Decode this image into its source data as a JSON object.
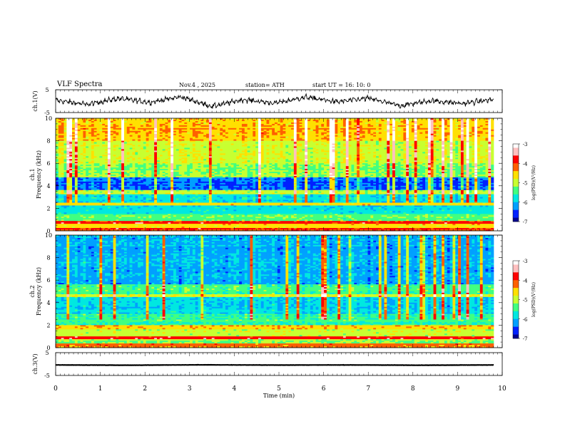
{
  "header": {
    "title": "VLF  Spectra",
    "date": "Nov.4  , 2025",
    "station": "station= ATH",
    "start": "start  UT  =    16: 10: 0"
  },
  "colors": {
    "trace": "#000000",
    "axis": "#000000",
    "cmap": [
      "#000000",
      "#000090",
      "#0020ff",
      "#00a0ff",
      "#00e8e0",
      "#40ff80",
      "#c8ff30",
      "#ffe000",
      "#ff6000",
      "#ff0000",
      "#ffc0c0",
      "#ffffff"
    ]
  },
  "chart_data": [
    {
      "id": "ch1-waveform",
      "type": "line",
      "ylabel": "ch.1(V)",
      "ylim": [
        -5,
        5
      ],
      "yticks": [
        "5",
        "-5"
      ],
      "xlim": [
        0,
        10
      ],
      "values_sample": [
        0.5,
        -1.8,
        1.5,
        -0.6,
        2.4,
        -2.9,
        0.9,
        -1.1,
        2.2,
        -0.4,
        1.6,
        -2.5,
        0.3,
        -1.3,
        1.0
      ]
    },
    {
      "id": "ch1-spectrogram",
      "type": "heatmap",
      "ylabel": "ch.1\nFrequency (kHz)",
      "ylim": [
        0,
        10
      ],
      "yticks": [
        "0",
        "2",
        "4",
        "6",
        "8",
        "10"
      ],
      "xlim": [
        0,
        9.8
      ],
      "colorbar": {
        "label": "log(PSD)(V²/Hz)",
        "range": [
          -7,
          -3
        ],
        "ticks": [
          "-3",
          "-4",
          "-5",
          "-6",
          "-7"
        ]
      },
      "bands": [
        {
          "f": [
            0.0,
            0.3
          ],
          "level": -4.0
        },
        {
          "f": [
            0.3,
            0.6
          ],
          "level": -4.6
        },
        {
          "f": [
            0.6,
            0.9
          ],
          "level": -3.9
        },
        {
          "f": [
            0.9,
            1.5
          ],
          "level": -5.3
        },
        {
          "f": [
            1.5,
            2.2
          ],
          "level": -5.8
        },
        {
          "f": [
            2.2,
            2.5
          ],
          "level": -4.6
        },
        {
          "f": [
            2.5,
            3.3
          ],
          "level": -5.9
        },
        {
          "f": [
            3.3,
            3.6
          ],
          "level": -5.1
        },
        {
          "f": [
            3.6,
            4.8
          ],
          "level": -6.4
        },
        {
          "f": [
            4.8,
            6.0
          ],
          "level": -5.2
        },
        {
          "f": [
            6.0,
            8.0
          ],
          "level": -4.9
        },
        {
          "f": [
            8.0,
            10.0
          ],
          "level": -4.5
        }
      ]
    },
    {
      "id": "ch2-spectrogram",
      "type": "heatmap",
      "ylabel": "ch.2\nFrequency (kHz)",
      "ylim": [
        0,
        10
      ],
      "yticks": [
        "0",
        "2",
        "4",
        "6",
        "8",
        "10"
      ],
      "xlim": [
        0,
        9.8
      ],
      "colorbar": {
        "label": "log(PSD)(V²/Hz)",
        "range": [
          -7,
          -3
        ],
        "ticks": [
          "-3",
          "-4",
          "-5",
          "-6",
          "-7"
        ]
      },
      "bands": [
        {
          "f": [
            0.0,
            0.4
          ],
          "level": -4.2
        },
        {
          "f": [
            0.4,
            0.7
          ],
          "level": -5.2
        },
        {
          "f": [
            0.7,
            1.0
          ],
          "level": -3.8
        },
        {
          "f": [
            1.0,
            1.6
          ],
          "level": -5.0
        },
        {
          "f": [
            1.6,
            2.0
          ],
          "level": -4.5
        },
        {
          "f": [
            2.0,
            3.0
          ],
          "level": -5.5
        },
        {
          "f": [
            3.0,
            4.5
          ],
          "level": -5.9
        },
        {
          "f": [
            4.5,
            4.8
          ],
          "level": -4.9
        },
        {
          "f": [
            4.8,
            5.6
          ],
          "level": -5.5
        },
        {
          "f": [
            5.6,
            10.0
          ],
          "level": -6.1
        }
      ]
    },
    {
      "id": "ch3-waveform",
      "type": "line",
      "ylabel": "ch.3(V)",
      "ylim": [
        -5,
        5
      ],
      "yticks": [
        "5",
        "-5"
      ],
      "xlim": [
        0,
        10
      ],
      "values_sample": [
        -0.4,
        -0.5,
        -0.35,
        -0.45,
        -0.4,
        -0.5,
        -0.4
      ]
    }
  ],
  "xaxis": {
    "label": "Time  (min)",
    "ticks": [
      "0",
      "1",
      "2",
      "3",
      "4",
      "5",
      "6",
      "7",
      "8",
      "9",
      "10"
    ]
  }
}
